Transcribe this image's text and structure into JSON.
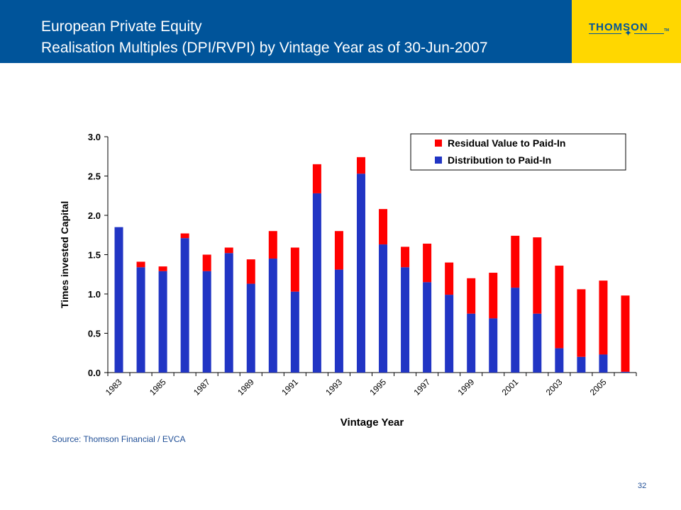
{
  "header": {
    "line1": "European Private Equity",
    "line2": "Realisation Multiples (DPI/RVPI) by Vintage Year as of 30-Jun-2007"
  },
  "logo": {
    "text": "THOMSON",
    "tm": "TM"
  },
  "colors": {
    "header_bg": "#00549a",
    "logo_bg": "#ffd700",
    "dpi": "#2135c4",
    "rvpi": "#ff0000"
  },
  "chart_data": {
    "type": "bar",
    "stacked": true,
    "xlabel": "Vintage Year",
    "ylabel": "Times invested Capital",
    "ylim": [
      0,
      3.0
    ],
    "yticks": [
      "0.0",
      "0.5",
      "1.0",
      "1.5",
      "2.0",
      "2.5",
      "3.0"
    ],
    "categories": [
      1983,
      1984,
      1985,
      1986,
      1987,
      1988,
      1989,
      1990,
      1991,
      1992,
      1993,
      1994,
      1995,
      1996,
      1997,
      1998,
      1999,
      2000,
      2001,
      2002,
      2003,
      2004,
      2005,
      2006
    ],
    "xtick_labels": [
      "1983",
      "1985",
      "1987",
      "1989",
      "1991",
      "1993",
      "1995",
      "1997",
      "1999",
      "2001",
      "2003",
      "2005"
    ],
    "legend_position": "top-right",
    "series": [
      {
        "name": "Distribution to Paid-In",
        "color": "#2135c4",
        "values": [
          1.85,
          1.34,
          1.29,
          1.71,
          1.29,
          1.52,
          1.13,
          1.45,
          1.03,
          2.28,
          1.31,
          2.53,
          1.63,
          1.34,
          1.15,
          0.99,
          0.75,
          0.69,
          1.08,
          0.75,
          0.31,
          0.2,
          0.23,
          0.01
        ]
      },
      {
        "name": "Residual Value to Paid-In",
        "color": "#ff0000",
        "values": [
          0.0,
          0.07,
          0.06,
          0.06,
          0.21,
          0.07,
          0.31,
          0.35,
          0.56,
          0.37,
          0.49,
          0.21,
          0.45,
          0.26,
          0.49,
          0.41,
          0.45,
          0.58,
          0.66,
          0.97,
          1.05,
          0.86,
          0.94,
          0.97
        ]
      }
    ],
    "legend_order": [
      "Residual Value to Paid-In",
      "Distribution to Paid-In"
    ]
  },
  "footer": {
    "source": "Source: Thomson Financial / EVCA",
    "page_number": "32"
  }
}
